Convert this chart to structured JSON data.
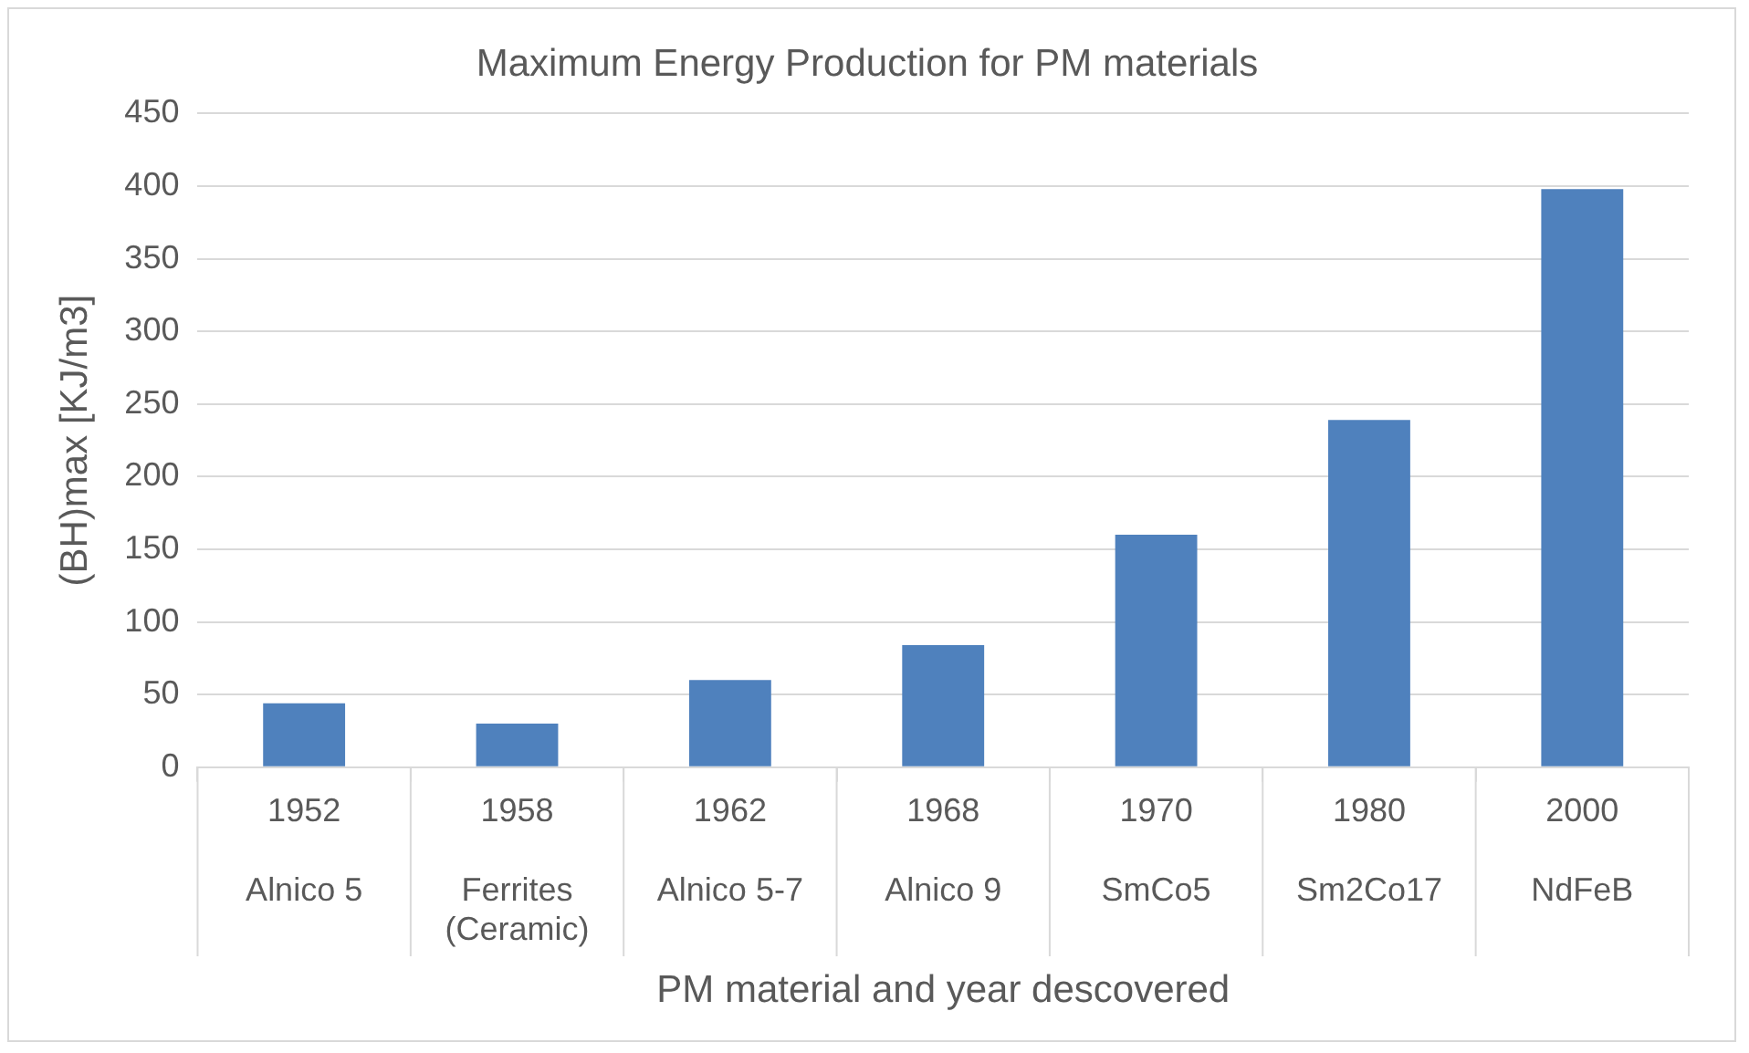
{
  "chart_data": {
    "type": "bar",
    "title": "Maximum Energy Production for PM materials",
    "xlabel": "PM material and year descovered",
    "ylabel": "(BH)max [KJ/m3]",
    "categories": [
      "1952\nAlnico 5",
      "1958\nFerrites (Ceramic)",
      "1962\nAlnico 5-7",
      "1968\nAlnico 9",
      "1970\nSmCo5",
      "1980\nSm2Co17",
      "2000\nNdFeB"
    ],
    "values": [
      44,
      30,
      60,
      84,
      160,
      239,
      398
    ],
    "color": "#4f81bd",
    "ylim": [
      0,
      450
    ],
    "yticks": [
      0,
      50,
      100,
      150,
      200,
      250,
      300,
      350,
      400,
      450
    ],
    "grid": "y",
    "legend": false
  }
}
